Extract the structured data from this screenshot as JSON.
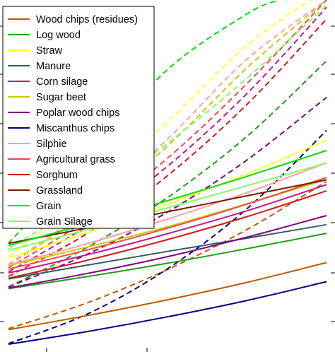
{
  "chart_data": {
    "type": "line",
    "title": "",
    "xlabel": "",
    "ylabel": "",
    "xlim": [
      0,
      1
    ],
    "ylim": [
      0,
      1
    ],
    "grid": false,
    "legend_position": "top-left",
    "series": [
      {
        "name": "Wood chips (residues)",
        "color": "#b85c00",
        "style": "solid",
        "x": [
          0.0,
          0.25,
          0.5,
          0.75,
          1.0
        ],
        "y": [
          0.052,
          0.093,
          0.138,
          0.188,
          0.245
        ]
      },
      {
        "name": "Log wood",
        "color": "#18a018",
        "style": "solid",
        "x": [
          0.0,
          0.25,
          0.5,
          0.75,
          1.0
        ],
        "y": [
          0.17,
          0.205,
          0.243,
          0.285,
          0.329
        ]
      },
      {
        "name": "Straw",
        "color": "#ffff33",
        "style": "solid",
        "x": [
          0.0,
          0.25,
          0.5,
          0.75,
          1.0
        ],
        "y": [
          0.258,
          0.332,
          0.413,
          0.5,
          0.597
        ]
      },
      {
        "name": "Manure",
        "color": "#2e5e5e",
        "style": "solid",
        "x": [
          0.0,
          0.25,
          0.5,
          0.75,
          1.0
        ],
        "y": [
          0.198,
          0.238,
          0.277,
          0.315,
          0.354
        ]
      },
      {
        "name": "Corn silage",
        "color": "#c0188c",
        "style": "solid",
        "x": [
          0.0,
          0.25,
          0.5,
          0.75,
          1.0
        ],
        "y": [
          0.215,
          0.268,
          0.328,
          0.394,
          0.469
        ]
      },
      {
        "name": "Sugar beet",
        "color": "#c8c800",
        "style": "solid",
        "x": [
          0.0,
          0.25,
          0.5,
          0.75,
          1.0
        ],
        "y": [
          0.236,
          0.29,
          0.348,
          0.414,
          0.484
        ]
      },
      {
        "name": "Poplar wood chips",
        "color": "#800080",
        "style": "solid",
        "x": [
          0.0,
          0.25,
          0.5,
          0.75,
          1.0
        ],
        "y": [
          0.172,
          0.214,
          0.262,
          0.318,
          0.38
        ]
      },
      {
        "name": "Miscanthus chips",
        "color": "#000080",
        "style": "solid",
        "x": [
          0.0,
          0.25,
          0.5,
          0.75,
          1.0
        ],
        "y": [
          0.01,
          0.047,
          0.089,
          0.136,
          0.19
        ]
      },
      {
        "name": "Silphie",
        "color": "#ffa0a0",
        "style": "solid",
        "x": [
          0.0,
          0.25,
          0.5,
          0.75,
          1.0
        ],
        "y": [
          0.238,
          0.3,
          0.37,
          0.446,
          0.532
        ]
      },
      {
        "name": "Agricultural grass",
        "color": "#f04848",
        "style": "solid",
        "x": [
          0.0,
          0.25,
          0.5,
          0.75,
          1.0
        ],
        "y": [
          0.226,
          0.282,
          0.344,
          0.413,
          0.49
        ]
      },
      {
        "name": "Sorghum",
        "color": "#d01818",
        "style": "solid",
        "x": [
          0.0,
          0.25,
          0.5,
          0.75,
          1.0
        ],
        "y": [
          0.2,
          0.252,
          0.311,
          0.377,
          0.451
        ]
      },
      {
        "name": "Grassland",
        "color": "#7a1a00",
        "style": "solid",
        "x": [
          0.0,
          0.25,
          0.5,
          0.75,
          1.0
        ],
        "y": [
          0.3,
          0.345,
          0.391,
          0.437,
          0.483
        ]
      },
      {
        "name": "Grain",
        "color": "#00e000",
        "style": "solid",
        "x": [
          0.0,
          0.25,
          0.5,
          0.75,
          1.0
        ],
        "y": [
          0.294,
          0.357,
          0.423,
          0.493,
          0.567
        ]
      },
      {
        "name": "Grain Silage",
        "color": "#80ff60",
        "style": "solid",
        "x": [
          0.0,
          0.25,
          0.5,
          0.75,
          1.0
        ],
        "y": [
          0.28,
          0.34,
          0.402,
          0.466,
          0.531
        ]
      },
      {
        "color": "#b85c00",
        "style": "dashed",
        "x": [
          0.0,
          0.25,
          0.5,
          0.75,
          1.0
        ],
        "y": [
          0.055,
          0.13,
          0.225,
          0.34,
          0.478
        ]
      },
      {
        "color": "#18a018",
        "style": "dashed",
        "x": [
          0.0,
          0.25,
          0.5,
          0.75,
          1.0
        ],
        "y": [
          0.175,
          0.29,
          0.432,
          0.608,
          0.825
        ]
      },
      {
        "color": "#ffff33",
        "style": "dashed",
        "x": [
          0.0,
          0.25,
          0.5,
          0.75,
          0.95
        ],
        "y": [
          0.262,
          0.44,
          0.65,
          0.87,
          1.0
        ]
      },
      {
        "color": "#c0188c",
        "style": "dashed",
        "x": [
          0.0,
          0.25,
          0.5,
          0.75,
          1.0
        ],
        "y": [
          0.218,
          0.352,
          0.522,
          0.731,
          0.979
        ]
      },
      {
        "color": "#c8c800",
        "style": "dashed",
        "x": [
          0.0,
          0.25,
          0.5,
          0.75,
          1.0
        ],
        "y": [
          0.238,
          0.39,
          0.58,
          0.805,
          1.0
        ]
      },
      {
        "color": "#800080",
        "style": "dashed",
        "x": [
          0.0,
          0.25,
          0.5,
          0.75,
          1.0
        ],
        "y": [
          0.175,
          0.27,
          0.39,
          0.54,
          0.72
        ]
      },
      {
        "color": "#000080",
        "style": "dashed",
        "x": [
          0.0,
          0.25,
          0.5,
          0.75,
          1.0
        ],
        "y": [
          0.012,
          0.098,
          0.227,
          0.4,
          0.625
        ]
      },
      {
        "color": "#ffa0a0",
        "style": "dashed",
        "x": [
          0.0,
          0.25,
          0.5,
          0.75,
          1.0
        ],
        "y": [
          0.24,
          0.4,
          0.6,
          0.83,
          1.0
        ]
      },
      {
        "color": "#f04848",
        "style": "dashed",
        "x": [
          0.0,
          0.25,
          0.5,
          0.75,
          1.0
        ],
        "y": [
          0.23,
          0.37,
          0.545,
          0.76,
          1.0
        ]
      },
      {
        "color": "#d01818",
        "style": "dashed",
        "x": [
          0.0,
          0.25,
          0.5,
          0.75,
          1.0
        ],
        "y": [
          0.205,
          0.33,
          0.495,
          0.7,
          0.945
        ]
      },
      {
        "color": "#00e000",
        "style": "dashed",
        "x": [
          0.0,
          0.25,
          0.5,
          0.75,
          0.85
        ],
        "y": [
          0.3,
          0.55,
          0.8,
          0.96,
          1.0
        ]
      },
      {
        "color": "#80ff60",
        "style": "dashed",
        "x": [
          0.0,
          0.25,
          0.5,
          0.75,
          1.0
        ],
        "y": [
          0.285,
          0.425,
          0.588,
          0.775,
          0.985
        ]
      }
    ]
  }
}
